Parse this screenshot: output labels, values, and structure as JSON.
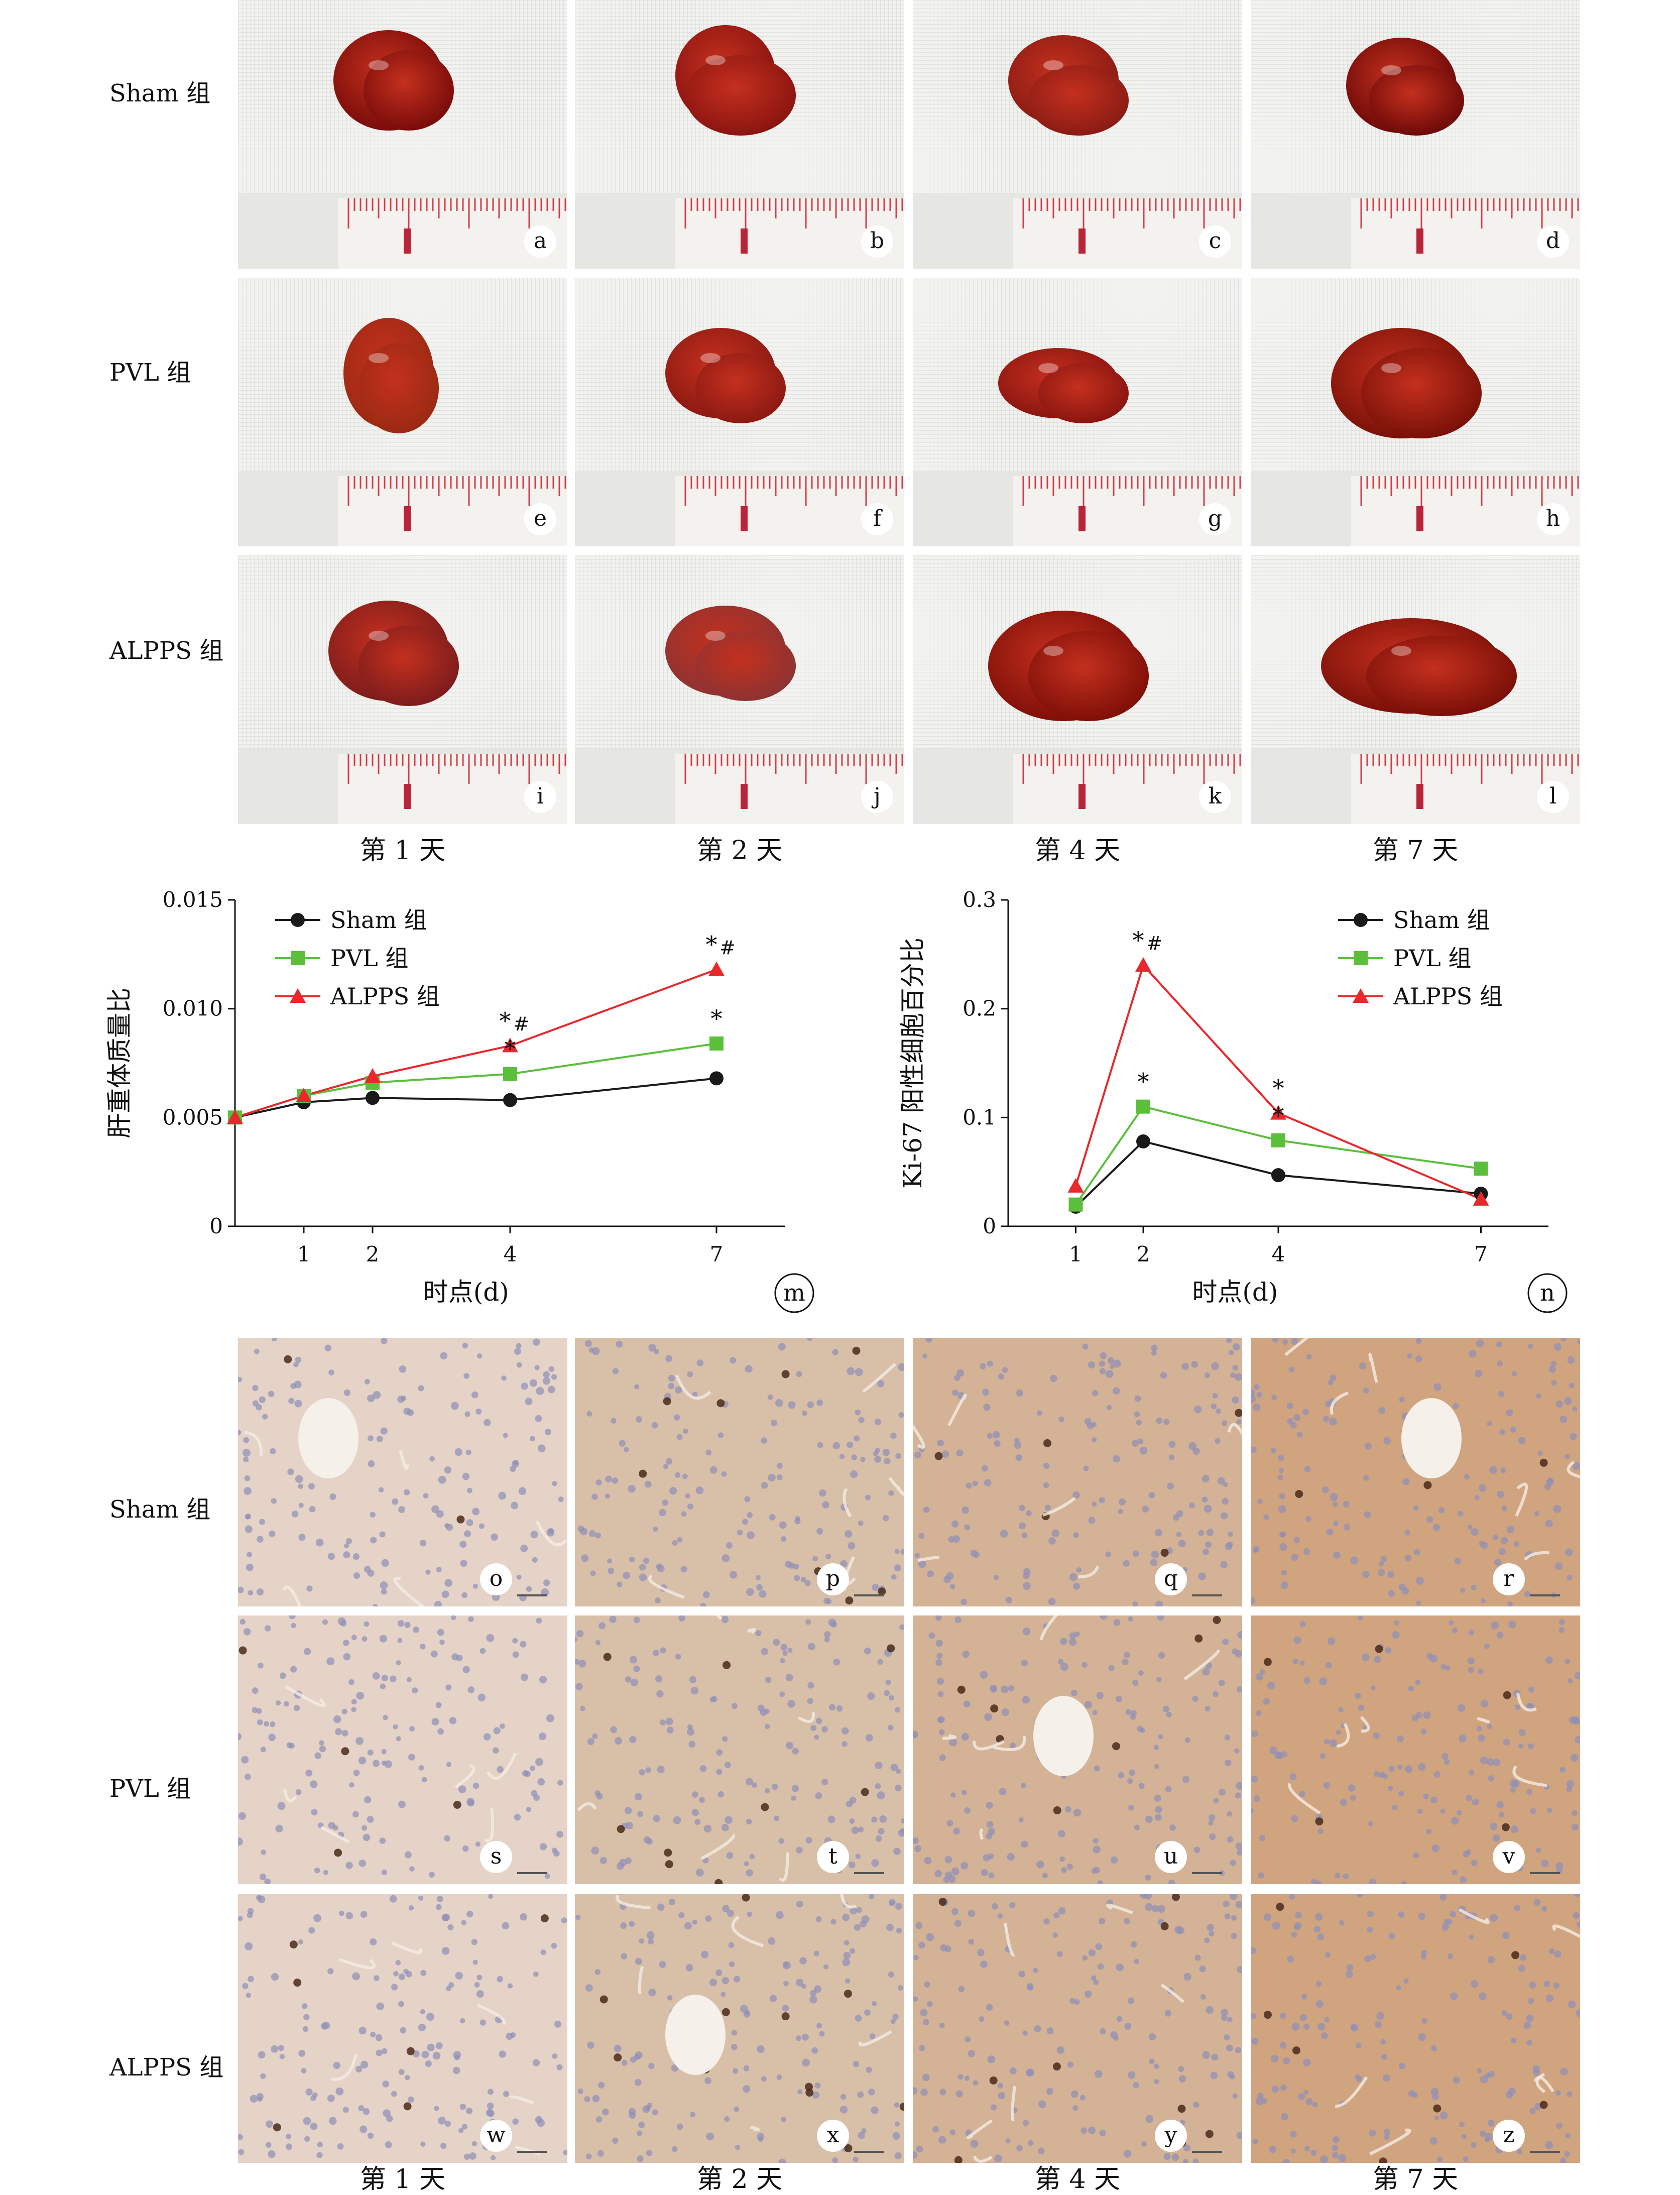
{
  "groups": [
    "Sham 组",
    "PVL 组",
    "ALPPS 组"
  ],
  "days": [
    "第 1 天",
    "第 2 天",
    "第 4 天",
    "第 7 天"
  ],
  "photo_panels": [
    [
      "a",
      "b",
      "c",
      "d"
    ],
    [
      "e",
      "f",
      "g",
      "h"
    ],
    [
      "i",
      "j",
      "k",
      "l"
    ]
  ],
  "stain_panels": [
    [
      "o",
      "p",
      "q",
      "r"
    ],
    [
      "s",
      "t",
      "u",
      "v"
    ],
    [
      "w",
      "x",
      "y",
      "z"
    ]
  ],
  "chart_data": [
    {
      "type": "line",
      "panel": "m",
      "xlabel": "时点(d)",
      "ylabel": "肝重体质量比",
      "x": [
        0,
        1,
        2,
        4,
        7
      ],
      "x_ticks": [
        1,
        2,
        4,
        7
      ],
      "xlim": [
        0,
        8
      ],
      "ylim": [
        0,
        0.015
      ],
      "y_ticks": [
        "0",
        "0.005",
        "0.010",
        "0.015"
      ],
      "legend_position": "top-left",
      "series": [
        {
          "name": "Sham 组",
          "marker": "circle",
          "color": "#1a1a1a",
          "values": [
            0.005,
            0.0057,
            0.0059,
            0.0058,
            0.0068
          ]
        },
        {
          "name": "PVL 组",
          "marker": "square",
          "color": "#5bbf3c",
          "values": [
            0.005,
            0.006,
            0.0066,
            0.007,
            0.0084
          ]
        },
        {
          "name": "ALPPS 组",
          "marker": "triangle",
          "color": "#e8282c",
          "values": [
            0.005,
            0.006,
            0.0069,
            0.0083,
            0.0118
          ]
        }
      ],
      "annotations": [
        {
          "x": 4,
          "y": 0.0083,
          "text": "*#"
        },
        {
          "x": 4,
          "y": 0.007,
          "text": "*"
        },
        {
          "x": 7,
          "y": 0.0118,
          "text": "*#"
        },
        {
          "x": 7,
          "y": 0.0084,
          "text": "*"
        }
      ]
    },
    {
      "type": "line",
      "panel": "n",
      "xlabel": "时点(d)",
      "ylabel": "Ki-67 阳性细胞百分比",
      "x": [
        1,
        2,
        4,
        7
      ],
      "x_ticks": [
        1,
        2,
        4,
        7
      ],
      "xlim": [
        0,
        8
      ],
      "ylim": [
        0,
        0.3
      ],
      "y_ticks": [
        "0",
        "0.1",
        "0.2",
        "0.3"
      ],
      "legend_position": "top-right",
      "series": [
        {
          "name": "Sham 组",
          "marker": "circle",
          "color": "#1a1a1a",
          "values": [
            0.018,
            0.078,
            0.047,
            0.03
          ]
        },
        {
          "name": "PVL 组",
          "marker": "square",
          "color": "#5bbf3c",
          "values": [
            0.02,
            0.11,
            0.079,
            0.053
          ]
        },
        {
          "name": "ALPPS 组",
          "marker": "triangle",
          "color": "#e8282c",
          "values": [
            0.037,
            0.24,
            0.104,
            0.025
          ]
        }
      ],
      "annotations": [
        {
          "x": 2,
          "y": 0.24,
          "text": "*#"
        },
        {
          "x": 2,
          "y": 0.11,
          "text": "*"
        },
        {
          "x": 4,
          "y": 0.104,
          "text": "*"
        },
        {
          "x": 4,
          "y": 0.079,
          "text": "*"
        }
      ]
    }
  ]
}
